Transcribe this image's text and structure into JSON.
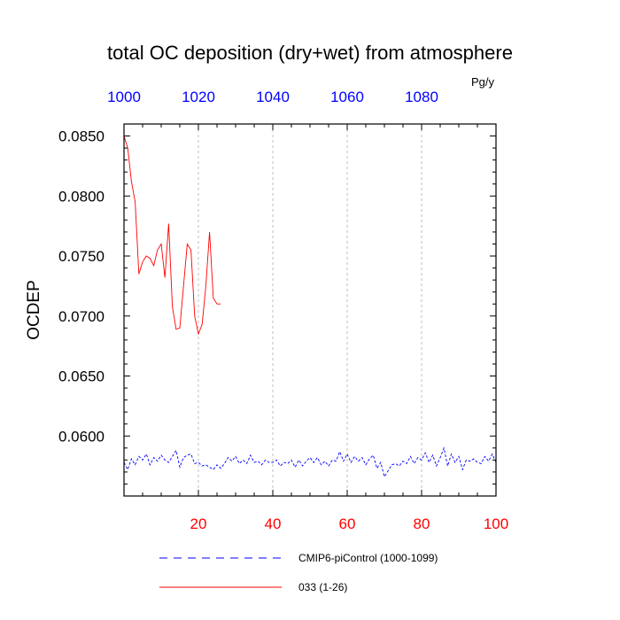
{
  "chart_data": {
    "type": "line",
    "title": "total OC deposition (dry+wet) from atmosphere",
    "units": "Pg/y",
    "ylabel": "OCDEP",
    "xlim": [
      0,
      100
    ],
    "ylim": [
      0.055,
      0.086
    ],
    "x_ticks": [
      20,
      40,
      60,
      80,
      100
    ],
    "x_top_ticks": [
      {
        "value": 0,
        "label": "1000"
      },
      {
        "value": 20,
        "label": "1020"
      },
      {
        "value": 40,
        "label": "1040"
      },
      {
        "value": 60,
        "label": "1060"
      },
      {
        "value": 80,
        "label": "1080"
      }
    ],
    "y_ticks": [
      {
        "value": 0.06,
        "label": "0.0600"
      },
      {
        "value": 0.065,
        "label": "0.0650"
      },
      {
        "value": 0.07,
        "label": "0.0700"
      },
      {
        "value": 0.075,
        "label": "0.0750"
      },
      {
        "value": 0.08,
        "label": "0.0800"
      },
      {
        "value": 0.085,
        "label": "0.0850"
      }
    ],
    "grid": "vertical dashed at labeled x ticks",
    "colors": {
      "bottom_axis_labels": "#ff0000",
      "top_axis_labels": "#0000ff",
      "series_control": "#0000ff",
      "series_033": "#ff0000"
    },
    "series": [
      {
        "name": "CMIP6-piControl (1000-1099)",
        "style": "dashed",
        "color": "#0000ff",
        "x": [
          0,
          1,
          2,
          3,
          4,
          5,
          6,
          7,
          8,
          9,
          10,
          11,
          12,
          13,
          14,
          15,
          16,
          17,
          18,
          19,
          20,
          21,
          22,
          23,
          24,
          25,
          26,
          27,
          28,
          29,
          30,
          31,
          32,
          33,
          34,
          35,
          36,
          37,
          38,
          39,
          40,
          41,
          42,
          43,
          44,
          45,
          46,
          47,
          48,
          49,
          50,
          51,
          52,
          53,
          54,
          55,
          56,
          57,
          58,
          59,
          60,
          61,
          62,
          63,
          64,
          65,
          66,
          67,
          68,
          69,
          70,
          71,
          72,
          73,
          74,
          75,
          76,
          77,
          78,
          79,
          80,
          81,
          82,
          83,
          84,
          85,
          86,
          87,
          88,
          89,
          90,
          91,
          92,
          93,
          94,
          95,
          96,
          97,
          98,
          99,
          100
        ],
        "values": [
          0.0578,
          0.0572,
          0.0581,
          0.0576,
          0.0583,
          0.058,
          0.0585,
          0.0576,
          0.0582,
          0.0579,
          0.0584,
          0.058,
          0.0578,
          0.0583,
          0.0588,
          0.0574,
          0.0582,
          0.0584,
          0.0585,
          0.0577,
          0.0578,
          0.0575,
          0.0576,
          0.0574,
          0.0572,
          0.0576,
          0.0573,
          0.0577,
          0.0582,
          0.0579,
          0.0583,
          0.0577,
          0.058,
          0.0577,
          0.0584,
          0.0578,
          0.0579,
          0.0576,
          0.058,
          0.0578,
          0.0578,
          0.058,
          0.0575,
          0.0578,
          0.0577,
          0.058,
          0.0574,
          0.058,
          0.0575,
          0.0579,
          0.0582,
          0.0578,
          0.0582,
          0.0576,
          0.0579,
          0.0575,
          0.058,
          0.0579,
          0.0587,
          0.0579,
          0.0585,
          0.0578,
          0.0583,
          0.0579,
          0.0582,
          0.0576,
          0.0581,
          0.0584,
          0.0573,
          0.0578,
          0.0566,
          0.0571,
          0.0576,
          0.0577,
          0.0575,
          0.0579,
          0.0577,
          0.0583,
          0.0577,
          0.0582,
          0.058,
          0.0586,
          0.0578,
          0.0584,
          0.0575,
          0.0582,
          0.059,
          0.0575,
          0.0585,
          0.0578,
          0.0583,
          0.0572,
          0.058,
          0.0579,
          0.0581,
          0.0578,
          0.0577,
          0.0583,
          0.0579,
          0.0585,
          0.0578
        ]
      },
      {
        "name": "033 (1-26)",
        "style": "solid",
        "color": "#ff0000",
        "x": [
          0,
          1,
          2,
          3,
          4,
          5,
          6,
          7,
          8,
          9,
          10,
          11,
          12,
          13,
          14,
          15,
          16,
          17,
          18,
          19,
          20,
          21,
          22,
          23,
          24,
          25,
          26
        ],
        "values": [
          0.085,
          0.084,
          0.0812,
          0.0795,
          0.0735,
          0.0745,
          0.075,
          0.0748,
          0.0742,
          0.0755,
          0.076,
          0.0732,
          0.0777,
          0.0708,
          0.0689,
          0.069,
          0.0725,
          0.076,
          0.0755,
          0.07,
          0.0685,
          0.0693,
          0.0725,
          0.077,
          0.0715,
          0.071,
          0.071
        ]
      }
    ]
  }
}
